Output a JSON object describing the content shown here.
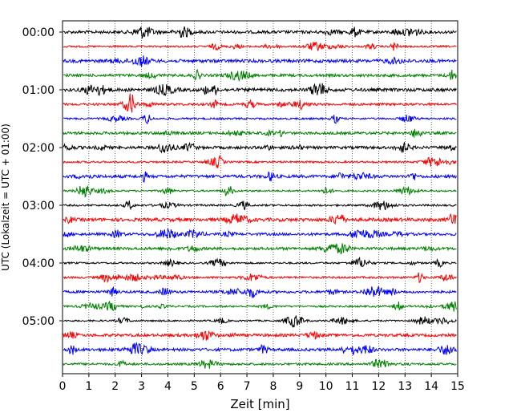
{
  "chart_data": {
    "type": "line",
    "title": "",
    "xlabel": "Zeit  [min]",
    "ylabel": "UTC (Lokalzeit = UTC + 01:00)",
    "xlim": [
      0,
      15
    ],
    "x_ticks": [
      "0",
      "1",
      "2",
      "3",
      "4",
      "5",
      "6",
      "7",
      "8",
      "9",
      "10",
      "11",
      "12",
      "13",
      "14",
      "15"
    ],
    "y_ticks": [
      "00:00",
      "01:00",
      "02:00",
      "03:00",
      "04:00",
      "05:00"
    ],
    "grid": "vertical dotted at each minute",
    "colors": [
      "#000000",
      "#ff0000",
      "#0000ff",
      "#008000"
    ],
    "traces": [
      {
        "start": "00:00",
        "color": "#000000"
      },
      {
        "start": "00:15",
        "color": "#ff0000"
      },
      {
        "start": "00:30",
        "color": "#0000ff"
      },
      {
        "start": "00:45",
        "color": "#008000"
      },
      {
        "start": "01:00",
        "color": "#000000"
      },
      {
        "start": "01:15",
        "color": "#ff0000"
      },
      {
        "start": "01:30",
        "color": "#0000ff"
      },
      {
        "start": "01:45",
        "color": "#008000"
      },
      {
        "start": "02:00",
        "color": "#000000"
      },
      {
        "start": "02:15",
        "color": "#ff0000"
      },
      {
        "start": "02:30",
        "color": "#0000ff"
      },
      {
        "start": "02:45",
        "color": "#008000"
      },
      {
        "start": "03:00",
        "color": "#000000"
      },
      {
        "start": "03:15",
        "color": "#ff0000"
      },
      {
        "start": "03:30",
        "color": "#0000ff"
      },
      {
        "start": "03:45",
        "color": "#008000"
      },
      {
        "start": "04:00",
        "color": "#000000"
      },
      {
        "start": "04:15",
        "color": "#ff0000"
      },
      {
        "start": "04:30",
        "color": "#0000ff"
      },
      {
        "start": "04:45",
        "color": "#008000"
      },
      {
        "start": "05:00",
        "color": "#000000"
      },
      {
        "start": "05:15",
        "color": "#ff0000"
      },
      {
        "start": "05:30",
        "color": "#0000ff"
      },
      {
        "start": "05:45",
        "color": "#008000"
      }
    ]
  }
}
